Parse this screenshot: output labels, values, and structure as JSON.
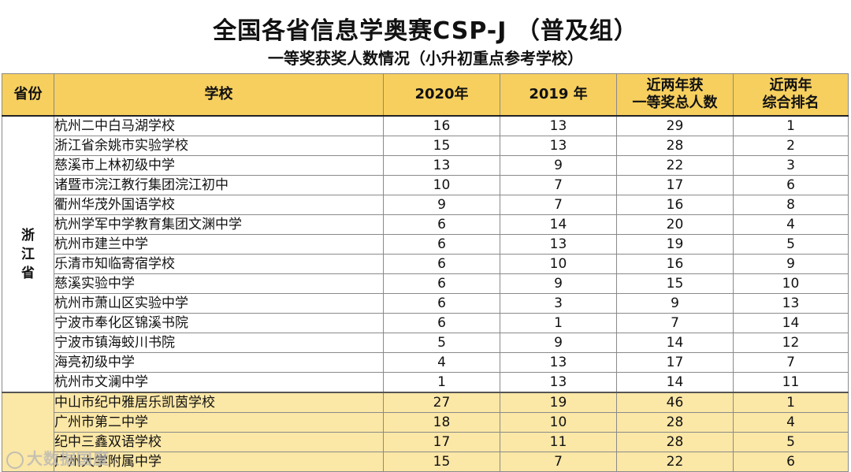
{
  "title": "全国各省信息学奥赛CSP-J （普及组）",
  "subtitle": "一等奖获奖人数情况（小升初重点参考学校）",
  "headers": {
    "province": "省份",
    "school": "学校",
    "y2020": "2020年",
    "y2019": "2019 年",
    "total_line1": "近两年获",
    "total_line2": "一等奖总人数",
    "rank_line1": "近两年",
    "rank_line2": "综合排名"
  },
  "provinces": {
    "zhejiang_chars": [
      "浙",
      "江",
      "省"
    ]
  },
  "rows": [
    {
      "school": "杭州二中白马湖学校",
      "y2020": "16",
      "y2019": "13",
      "total": "29",
      "rank": "1"
    },
    {
      "school": "浙江省余姚市实验学校",
      "y2020": "15",
      "y2019": "13",
      "total": "28",
      "rank": "2"
    },
    {
      "school": "慈溪市上林初级中学",
      "y2020": "13",
      "y2019": "9",
      "total": "22",
      "rank": "3"
    },
    {
      "school": "诸暨市浣江教行集团浣江初中",
      "y2020": "10",
      "y2019": "7",
      "total": "17",
      "rank": "6"
    },
    {
      "school": "衢州华茂外国语学校",
      "y2020": "9",
      "y2019": "7",
      "total": "16",
      "rank": "8"
    },
    {
      "school": "杭州学军中学教育集团文渊中学",
      "y2020": "6",
      "y2019": "14",
      "total": "20",
      "rank": "4"
    },
    {
      "school": "杭州市建兰中学",
      "y2020": "6",
      "y2019": "13",
      "total": "19",
      "rank": "5"
    },
    {
      "school": "乐清市知临寄宿学校",
      "y2020": "6",
      "y2019": "10",
      "total": "16",
      "rank": "9"
    },
    {
      "school": "慈溪实验中学",
      "y2020": "6",
      "y2019": "9",
      "total": "15",
      "rank": "10"
    },
    {
      "school": "杭州市萧山区实验中学",
      "y2020": "6",
      "y2019": "3",
      "total": "9",
      "rank": "13"
    },
    {
      "school": "宁波市奉化区锦溪书院",
      "y2020": "6",
      "y2019": "1",
      "total": "7",
      "rank": "14"
    },
    {
      "school": "宁波市镇海蛟川书院",
      "y2020": "5",
      "y2019": "9",
      "total": "14",
      "rank": "12"
    },
    {
      "school": "海亮初级中学",
      "y2020": "4",
      "y2019": "13",
      "total": "17",
      "rank": "7"
    },
    {
      "school": "杭州市文澜中学",
      "y2020": "1",
      "y2019": "13",
      "total": "14",
      "rank": "11"
    },
    {
      "school": "中山市纪中雅居乐凯茵学校",
      "y2020": "27",
      "y2019": "19",
      "total": "46",
      "rank": "1"
    },
    {
      "school": "广州市第二中学",
      "y2020": "18",
      "y2019": "10",
      "total": "28",
      "rank": "4"
    },
    {
      "school": "纪中三鑫双语学校",
      "y2020": "17",
      "y2019": "11",
      "total": "28",
      "rank": "5"
    },
    {
      "school": "广州大学附属中学",
      "y2020": "15",
      "y2019": "7",
      "total": "22",
      "rank": "6"
    }
  ],
  "watermark": "大数据国度"
}
